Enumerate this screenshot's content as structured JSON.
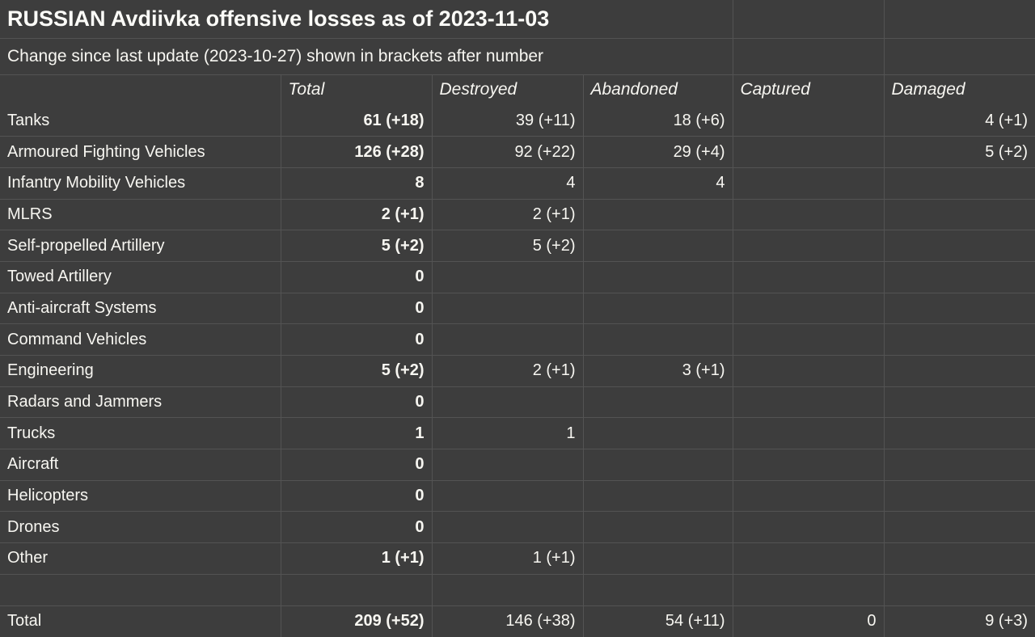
{
  "header": {
    "title": "RUSSIAN Avdiivka offensive losses as of 2023-11-03",
    "subtitle": "Change since last update (2023-10-27) shown in brackets after number"
  },
  "colors": {
    "background": "#3d3d3d",
    "grid": "#535353",
    "text": "#f7f6f1"
  },
  "chart_data": {
    "type": "table",
    "columns": [
      "",
      "Total",
      "Destroyed",
      "Abandoned",
      "Captured",
      "Damaged"
    ],
    "rows": [
      {
        "label": "Tanks",
        "values": [
          "61 (+18)",
          "39 (+11)",
          "18 (+6)",
          "",
          "4 (+1)"
        ]
      },
      {
        "label": "Armoured Fighting Vehicles",
        "values": [
          "126 (+28)",
          "92 (+22)",
          "29 (+4)",
          "",
          "5 (+2)"
        ]
      },
      {
        "label": "Infantry Mobility Vehicles",
        "values": [
          "8",
          "4",
          "4",
          "",
          ""
        ]
      },
      {
        "label": "MLRS",
        "values": [
          "2 (+1)",
          "2 (+1)",
          "",
          "",
          ""
        ]
      },
      {
        "label": "Self-propelled Artillery",
        "values": [
          "5 (+2)",
          "5 (+2)",
          "",
          "",
          ""
        ]
      },
      {
        "label": "Towed Artillery",
        "values": [
          "0",
          "",
          "",
          "",
          ""
        ]
      },
      {
        "label": "Anti-aircraft Systems",
        "values": [
          "0",
          "",
          "",
          "",
          ""
        ]
      },
      {
        "label": "Command Vehicles",
        "values": [
          "0",
          "",
          "",
          "",
          ""
        ]
      },
      {
        "label": "Engineering",
        "values": [
          "5 (+2)",
          "2 (+1)",
          "3 (+1)",
          "",
          ""
        ]
      },
      {
        "label": "Radars and Jammers",
        "values": [
          "0",
          "",
          "",
          "",
          ""
        ]
      },
      {
        "label": "Trucks",
        "values": [
          "1",
          "1",
          "",
          "",
          ""
        ]
      },
      {
        "label": "Aircraft",
        "values": [
          "0",
          "",
          "",
          "",
          ""
        ]
      },
      {
        "label": "Helicopters",
        "values": [
          "0",
          "",
          "",
          "",
          ""
        ]
      },
      {
        "label": "Drones",
        "values": [
          "0",
          "",
          "",
          "",
          ""
        ]
      },
      {
        "label": "Other",
        "values": [
          "1 (+1)",
          "1 (+1)",
          "",
          "",
          ""
        ]
      }
    ],
    "spacer_row": {
      "label": "",
      "values": [
        "",
        "",
        "",
        "",
        ""
      ]
    },
    "total_row": {
      "label": "Total",
      "values": [
        "209 (+52)",
        "146 (+38)",
        "54 (+11)",
        "0",
        "9 (+3)"
      ]
    }
  }
}
